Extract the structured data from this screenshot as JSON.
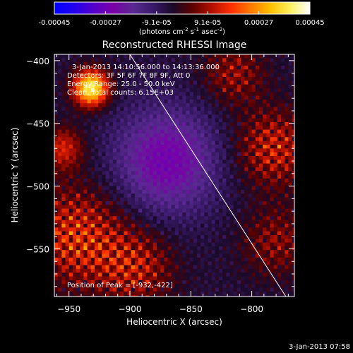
{
  "colorbar": {
    "ticks": [
      "-0.00045",
      "-0.00027",
      "-9.1e-05",
      "9.1e-05",
      "0.00027",
      "0.00045"
    ],
    "units_prefix": "(photons cm",
    "units_exp1": "-2",
    "units_mid": " s",
    "units_exp2": "-1",
    "units_suffix": " asec",
    "units_exp3": "-2",
    "units_close": ")",
    "stops": [
      "#0000ff",
      "#2200ee",
      "#5500c8",
      "#7a00a8",
      "#5a2a92",
      "#3a1a6a",
      "#1a0a2a",
      "#5a0000",
      "#b01000",
      "#ff3000",
      "#ff7a00",
      "#ffc000",
      "#fff060",
      "#ffffff"
    ]
  },
  "chart_data": {
    "type": "heatmap",
    "title": "Reconstructed RHESSI Image",
    "xlabel": "Heliocentric X (arcsec)",
    "ylabel": "Heliocentric Y (arcsec)",
    "xlim": [
      -962,
      -765
    ],
    "ylim": [
      -588,
      -395
    ],
    "x_ticks": [
      -950,
      -900,
      -850,
      -800
    ],
    "y_ticks": [
      -400,
      -450,
      -500,
      -550
    ],
    "x_tick_labels": [
      "−950",
      "−900",
      "−850",
      "−800"
    ],
    "y_tick_labels": [
      "−400",
      "−450",
      "−500",
      "−550"
    ],
    "colorbar_range": [
      -0.00045,
      0.00045
    ],
    "limb_line": [
      [
        -900,
        -395
      ],
      [
        -772,
        -588
      ]
    ],
    "peak_position": [
      -932,
      -422
    ],
    "sources": [
      {
        "x": -932,
        "y": -422,
        "sigma": 10,
        "amp": 0.00045
      },
      {
        "x": -945,
        "y": -540,
        "sigma": 28,
        "amp": 0.00034
      },
      {
        "x": -895,
        "y": -565,
        "sigma": 22,
        "amp": 0.00026
      },
      {
        "x": -782,
        "y": -470,
        "sigma": 22,
        "amp": 0.0003
      },
      {
        "x": -815,
        "y": -410,
        "sigma": 18,
        "amp": 0.00022
      },
      {
        "x": -780,
        "y": -545,
        "sigma": 20,
        "amp": 0.0002
      },
      {
        "x": -955,
        "y": -470,
        "sigma": 12,
        "amp": 0.00018
      }
    ],
    "negative_region": {
      "x": -870,
      "y": -480,
      "sigma": 30,
      "amp": -0.0002
    },
    "annotations": [
      "3-Jan-2013 14:10:56.000 to 14:13:36.000",
      "Detectors: 3F 5F 6F 7F 8F 9F, Att 0",
      "Energy Range: 25.0 - 50.0 keV",
      "Clean.  Total counts: 6.15E+03",
      "Position of Peak = [-932,-422]"
    ],
    "footer": "3-Jan-2013 07:58"
  }
}
